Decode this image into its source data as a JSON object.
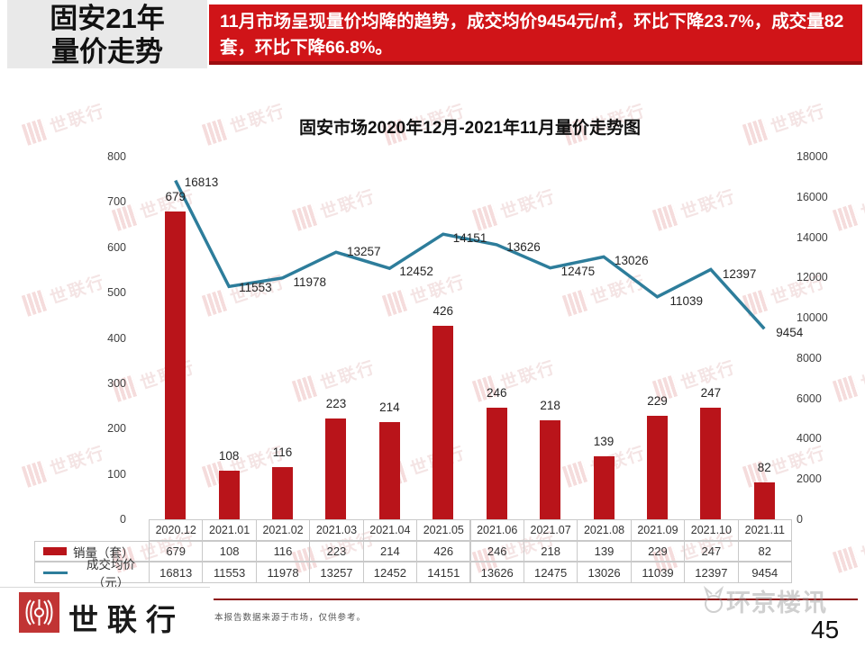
{
  "slide": {
    "title": {
      "line1": "固安21年",
      "line2": "量价走势"
    },
    "banner": {
      "text": "11月市场呈现量价均降的趋势，成交均价9454元/㎡，环比下降23.7%，成交量82套，环比下降66.8%。",
      "bg": "#d01418"
    },
    "watermark": {
      "text": "世联行"
    },
    "footer": {
      "brand": "世联行",
      "disclaimer": "本报告数据来源于市场，仅供参考。",
      "stamp": "环京楼讯",
      "page_number": "45"
    }
  },
  "chart_data": {
    "type": "combo",
    "title": "固安市场2020年12月-2021年11月量价走势图",
    "categories": [
      "2020.12",
      "2021.01",
      "2021.02",
      "2021.03",
      "2021.04",
      "2021.05",
      "2021.06",
      "2021.07",
      "2021.08",
      "2021.09",
      "2021.10",
      "2021.11"
    ],
    "series": [
      {
        "name": "销量（套）",
        "type": "bar",
        "axis": "left",
        "color": "#b9141a",
        "values": [
          679,
          108,
          116,
          223,
          214,
          426,
          246,
          218,
          139,
          229,
          247,
          82
        ]
      },
      {
        "name": "成交均价（元）",
        "type": "line",
        "axis": "right",
        "color": "#2d7d9b",
        "values": [
          16813,
          11553,
          11978,
          13257,
          12452,
          14151,
          13626,
          12475,
          13026,
          11039,
          12397,
          9454
        ],
        "label_offsets": [
          [
            10,
            1
          ],
          [
            11,
            1
          ],
          [
            12,
            4
          ],
          [
            12,
            -1
          ],
          [
            11,
            3
          ],
          [
            11,
            4
          ],
          [
            11,
            2
          ],
          [
            12,
            3
          ],
          [
            12,
            4
          ],
          [
            14,
            4
          ],
          [
            13,
            5
          ],
          [
            13,
            4
          ]
        ]
      }
    ],
    "left_axis": {
      "min": 0,
      "max": 800,
      "step": 100,
      "ticks": [
        800,
        700,
        600,
        500,
        400,
        300,
        200,
        100,
        0
      ]
    },
    "right_axis": {
      "min": 0,
      "max": 18000,
      "step": 2000,
      "ticks": [
        18000,
        16000,
        14000,
        12000,
        10000,
        8000,
        6000,
        4000,
        2000,
        0
      ]
    },
    "grid": false,
    "legend_position": "data-table-left",
    "data_table": true
  }
}
